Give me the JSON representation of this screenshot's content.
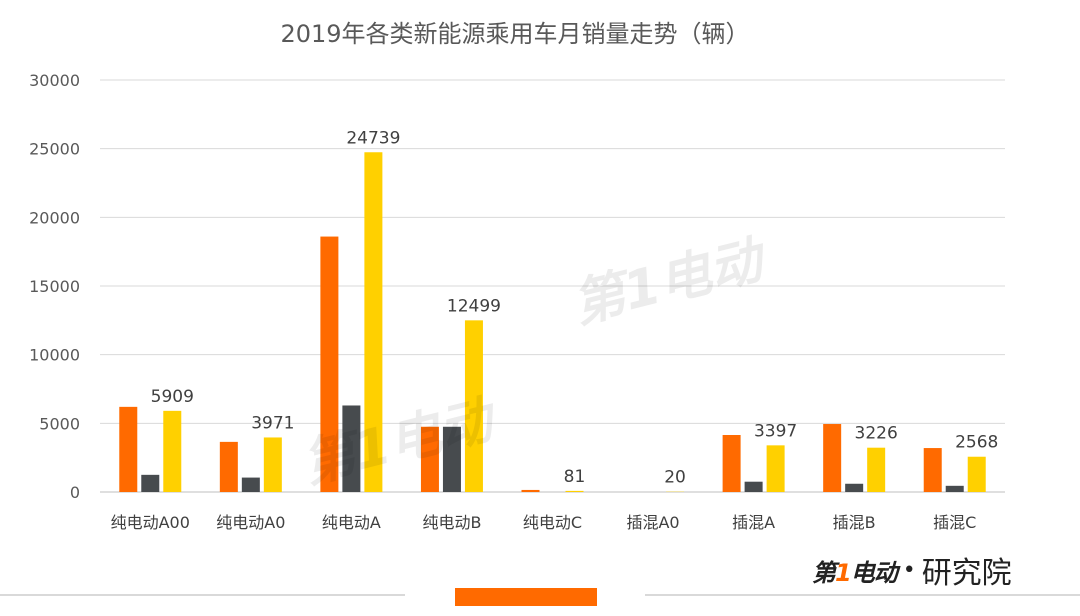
{
  "chart_data": {
    "type": "bar",
    "title": "2019年各类新能源乘用车月销量走势（辆）",
    "categories": [
      "纯电动A00",
      "纯电动A0",
      "纯电动A",
      "纯电动B",
      "纯电动C",
      "插混A0",
      "插混A",
      "插混B",
      "插混C"
    ],
    "series": [
      {
        "values": [
          6200,
          3650,
          18600,
          4750,
          150,
          0,
          4150,
          4950,
          3200
        ],
        "color": "#ff6a00"
      },
      {
        "values": [
          1250,
          1050,
          6300,
          4750,
          0,
          0,
          750,
          600,
          450
        ],
        "color": "#474b4e"
      },
      {
        "values": [
          5909,
          3971,
          24739,
          12499,
          81,
          20,
          3397,
          3226,
          2568
        ],
        "color": "#ffd000",
        "data_labels": [
          "5909",
          "3971",
          "24739",
          "12499",
          "81",
          "20",
          "3397",
          "3226",
          "2568"
        ]
      }
    ],
    "ylim": [
      0,
      30000
    ],
    "yticks": [
      0,
      5000,
      10000,
      15000,
      20000,
      25000,
      30000
    ],
    "xlabel": "",
    "ylabel": "",
    "grid": true
  },
  "branding": {
    "logo_text_pre": "第",
    "logo_text_one": "1",
    "logo_text_post": "电动",
    "separator": "•",
    "suffix": "研究院",
    "watermark": "第1电动",
    "accent_color": "#ff6a00"
  }
}
